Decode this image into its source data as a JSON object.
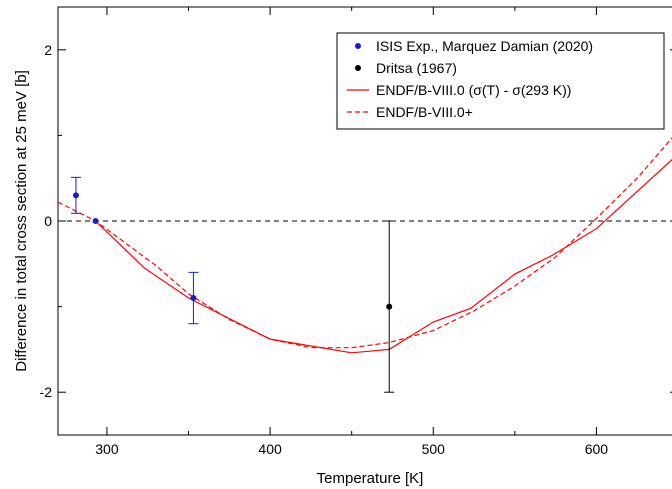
{
  "chart_data": {
    "type": "line",
    "xlabel": "Temperature [K]",
    "ylabel": "Difference in total cross section at 25 meV [b]",
    "xlim": [
      270,
      650
    ],
    "ylim": [
      -2.5,
      2.5
    ],
    "xticks": [
      300,
      400,
      500,
      600
    ],
    "yticks": [
      -2,
      0,
      2
    ],
    "xtick_labels": [
      "300",
      "400",
      "500",
      "600"
    ],
    "ytick_labels": [
      "-2",
      "0",
      "2"
    ],
    "grid": false,
    "legend_position": "top-right",
    "reference_line": {
      "y": 0,
      "style": "dashed",
      "color": "#000000"
    },
    "series": [
      {
        "name": "ISIS Exp., Marquez Damian (2020)",
        "kind": "points-errorbars",
        "color": "#1a1adb",
        "points": [
          {
            "x": 281,
            "y": 0.3,
            "err": 0.21
          },
          {
            "x": 293,
            "y": 0.0,
            "err": 0.0
          },
          {
            "x": 353,
            "y": -0.9,
            "err": 0.3
          }
        ]
      },
      {
        "name": "Dritsa (1967)",
        "kind": "points-errorbars",
        "color": "#000000",
        "points": [
          {
            "x": 473,
            "y": -1.0,
            "err": 1.0
          }
        ]
      },
      {
        "name": "ENDF/B-VIII.0 (σ(T) - σ(293 K))",
        "kind": "line",
        "style": "solid",
        "color": "#ff0000",
        "x": [
          293,
          323,
          350,
          400,
          450,
          473,
          500,
          523,
          550,
          573,
          600,
          650
        ],
        "y": [
          0.0,
          -0.55,
          -0.9,
          -1.38,
          -1.54,
          -1.5,
          -1.18,
          -1.02,
          -0.62,
          -0.4,
          -0.09,
          0.78
        ]
      },
      {
        "name": "ENDF/B-VIII.0+",
        "kind": "line",
        "style": "dashed",
        "color": "#ff0000",
        "x": [
          270,
          293,
          330,
          350,
          375,
          400,
          425,
          450,
          473,
          500,
          525,
          550,
          575,
          600,
          625,
          650
        ],
        "y": [
          0.22,
          0.0,
          -0.52,
          -0.85,
          -1.15,
          -1.38,
          -1.48,
          -1.48,
          -1.42,
          -1.28,
          -1.05,
          -0.76,
          -0.42,
          0.03,
          0.5,
          1.05
        ]
      }
    ]
  }
}
